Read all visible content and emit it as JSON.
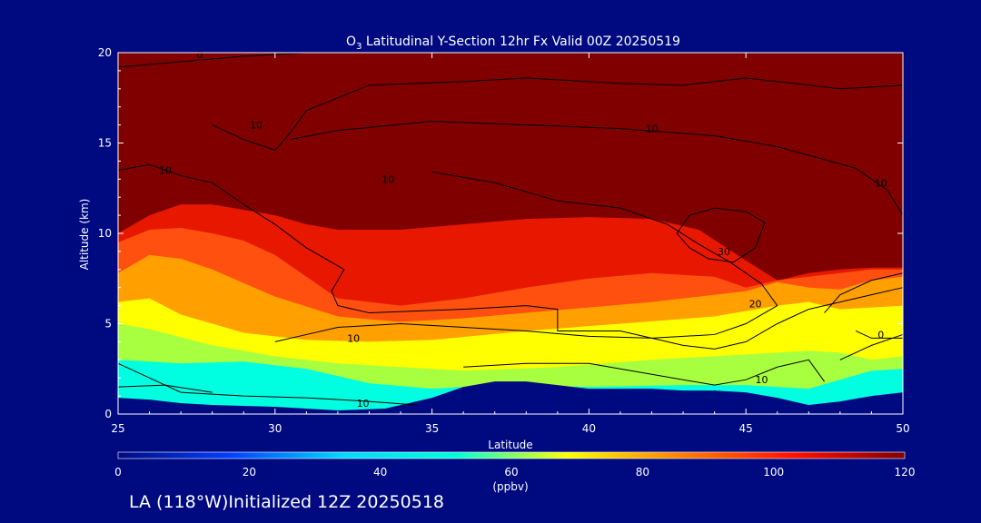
{
  "chart_data": {
    "type": "heatmap",
    "title_prefix": "O",
    "title_subscript": "3",
    "title_rest": " Latitudinal Y-Section 12hr  Fx Valid 00Z 20250519",
    "xlabel": "Latitude",
    "ylabel": "Altitude (km)",
    "xlim": [
      25,
      50
    ],
    "ylim": [
      0,
      20
    ],
    "x_ticks": [
      "25",
      "30",
      "35",
      "40",
      "45",
      "50"
    ],
    "y_ticks": [
      "0",
      "5",
      "10",
      "15",
      "20"
    ],
    "grid": false,
    "colorbar": {
      "label": "(ppbv)",
      "range": [
        0,
        120
      ],
      "ticks": [
        "0",
        "20",
        "40",
        "60",
        "80",
        "100",
        "120"
      ],
      "colors": [
        "#000a80",
        "#0040ff",
        "#00d8ff",
        "#00ffd8",
        "#ffff00",
        "#ff8000",
        "#ff1000",
        "#800000"
      ]
    },
    "fill_colors": {
      "terrain": "#000a80",
      "ozone_120": "#800000",
      "ozone_100": "#e81800",
      "ozone_90": "#ff5010",
      "ozone_80": "#ffa000",
      "ozone_70": "#ffff00",
      "ozone_60": "#a8ff40",
      "ozone_50": "#00ffe0",
      "ozone_40": "#40c0ff",
      "ozone_low": "#1060ff"
    },
    "layers": [
      {
        "name": "ozone_50",
        "top": [
          [
            25,
            3.0
          ],
          [
            27,
            2.8
          ],
          [
            29,
            2.9
          ],
          [
            31,
            2.5
          ],
          [
            33,
            1.7
          ],
          [
            35,
            1.4
          ],
          [
            37,
            1.6
          ],
          [
            40,
            1.5
          ],
          [
            43,
            1.6
          ],
          [
            45,
            1.6
          ],
          [
            47,
            1.4
          ],
          [
            49,
            2.4
          ],
          [
            50,
            2.5
          ]
        ]
      },
      {
        "name": "ozone_60",
        "top": [
          [
            25,
            5.0
          ],
          [
            26,
            4.7
          ],
          [
            28,
            3.8
          ],
          [
            30,
            3.2
          ],
          [
            32,
            2.8
          ],
          [
            34,
            2.6
          ],
          [
            36,
            2.4
          ],
          [
            39,
            2.6
          ],
          [
            42,
            3.0
          ],
          [
            45,
            3.3
          ],
          [
            47,
            3.5
          ],
          [
            48,
            3.4
          ],
          [
            49,
            3.0
          ],
          [
            50,
            3.2
          ]
        ]
      },
      {
        "name": "ozone_70",
        "top": [
          [
            25,
            6.2
          ],
          [
            26,
            6.4
          ],
          [
            27,
            5.5
          ],
          [
            29,
            4.5
          ],
          [
            31,
            4.1
          ],
          [
            33,
            4.0
          ],
          [
            35,
            4.1
          ],
          [
            38,
            4.6
          ],
          [
            41,
            5.0
          ],
          [
            44,
            5.4
          ],
          [
            46,
            6.0
          ],
          [
            47,
            6.2
          ],
          [
            48,
            5.8
          ],
          [
            49,
            5.9
          ],
          [
            50,
            6.0
          ]
        ]
      },
      {
        "name": "ozone_80",
        "top": [
          [
            25,
            7.8
          ],
          [
            26,
            8.8
          ],
          [
            27,
            8.6
          ],
          [
            28,
            8.0
          ],
          [
            30,
            6.5
          ],
          [
            32,
            5.4
          ],
          [
            34,
            5.1
          ],
          [
            36,
            5.3
          ],
          [
            38,
            5.6
          ],
          [
            40,
            5.9
          ],
          [
            42,
            6.2
          ],
          [
            44,
            6.6
          ],
          [
            45,
            6.8
          ],
          [
            46,
            7.3
          ],
          [
            47,
            7.0
          ],
          [
            48,
            6.9
          ],
          [
            49,
            7.4
          ],
          [
            50,
            7.6
          ]
        ]
      },
      {
        "name": "ozone_90",
        "top": [
          [
            25,
            9.5
          ],
          [
            26,
            10.2
          ],
          [
            27,
            10.3
          ],
          [
            28,
            10.0
          ],
          [
            29,
            9.6
          ],
          [
            30,
            8.8
          ],
          [
            31,
            7.6
          ],
          [
            32,
            6.4
          ],
          [
            34,
            6.0
          ],
          [
            36,
            6.4
          ],
          [
            38,
            7.0
          ],
          [
            40,
            7.5
          ],
          [
            42,
            7.8
          ],
          [
            44,
            7.6
          ],
          [
            45,
            7.0
          ],
          [
            46,
            7.4
          ],
          [
            47,
            7.6
          ],
          [
            48,
            7.8
          ],
          [
            49,
            8.0
          ],
          [
            50,
            8.0
          ]
        ]
      },
      {
        "name": "ozone_100",
        "top": [
          [
            25,
            10.0
          ],
          [
            26,
            11.0
          ],
          [
            27,
            11.6
          ],
          [
            28,
            11.6
          ],
          [
            29,
            11.3
          ],
          [
            30,
            11.0
          ],
          [
            31,
            10.5
          ],
          [
            32,
            10.2
          ],
          [
            34,
            10.2
          ],
          [
            36,
            10.5
          ],
          [
            38,
            10.8
          ],
          [
            40,
            10.9
          ],
          [
            42,
            10.8
          ],
          [
            43.5,
            10.2
          ],
          [
            45,
            8.5
          ],
          [
            46,
            7.4
          ],
          [
            47,
            7.8
          ],
          [
            48,
            8.0
          ],
          [
            49,
            8.1
          ],
          [
            50,
            8.1
          ]
        ]
      },
      {
        "name": "ozone_120",
        "top": [
          [
            25,
            20
          ],
          [
            50,
            20
          ]
        ]
      }
    ],
    "terrain": [
      [
        25,
        0.9
      ],
      [
        26,
        0.8
      ],
      [
        27,
        0.6
      ],
      [
        28,
        0.5
      ],
      [
        30,
        0.4
      ],
      [
        32,
        0.2
      ],
      [
        33.5,
        0.3
      ],
      [
        35,
        0.9
      ],
      [
        36,
        1.5
      ],
      [
        37,
        1.8
      ],
      [
        38,
        1.8
      ],
      [
        39,
        1.6
      ],
      [
        40,
        1.4
      ],
      [
        42,
        1.4
      ],
      [
        43,
        1.3
      ],
      [
        44,
        1.3
      ],
      [
        45,
        1.2
      ],
      [
        46,
        0.9
      ],
      [
        47,
        0.5
      ],
      [
        48,
        0.7
      ],
      [
        49,
        1.0
      ],
      [
        50,
        1.2
      ]
    ],
    "contours": [
      {
        "label": "0",
        "points": [
          [
            25,
            19.2
          ],
          [
            27,
            19.5
          ],
          [
            29,
            19.8
          ],
          [
            31,
            20.0
          ]
        ]
      },
      {
        "label": "10",
        "points": [
          [
            28,
            16.0
          ],
          [
            29,
            15.2
          ],
          [
            30,
            14.6
          ],
          [
            30.5,
            15.6
          ],
          [
            31,
            16.8
          ],
          [
            33,
            18.2
          ],
          [
            36,
            18.4
          ],
          [
            38,
            18.6
          ],
          [
            41,
            18.3
          ],
          [
            43,
            18.2
          ],
          [
            45,
            18.6
          ],
          [
            48,
            18.0
          ],
          [
            50,
            18.2
          ]
        ]
      },
      {
        "label": "10",
        "points": [
          [
            30.5,
            15.2
          ],
          [
            32,
            15.7
          ],
          [
            35,
            16.2
          ],
          [
            38,
            16.0
          ],
          [
            41,
            15.8
          ],
          [
            44,
            15.4
          ],
          [
            46,
            14.8
          ],
          [
            48.5,
            13.6
          ],
          [
            49.5,
            12.4
          ],
          [
            50,
            11.0
          ]
        ]
      },
      {
        "label": "10",
        "points": [
          [
            25,
            13.5
          ],
          [
            26,
            13.8
          ],
          [
            27,
            13.2
          ],
          [
            28,
            12.8
          ],
          [
            29,
            11.6
          ],
          [
            30,
            10.5
          ],
          [
            31,
            9.2
          ],
          [
            32.2,
            8.0
          ],
          [
            31.8,
            6.8
          ],
          [
            32,
            6.0
          ],
          [
            33,
            5.6
          ],
          [
            36,
            5.8
          ],
          [
            38,
            6.0
          ],
          [
            39,
            5.8
          ],
          [
            39,
            4.6
          ],
          [
            41,
            4.6
          ],
          [
            42,
            4.2
          ],
          [
            43,
            3.8
          ],
          [
            44,
            3.6
          ],
          [
            45,
            4.0
          ],
          [
            46,
            5.0
          ],
          [
            47,
            5.8
          ],
          [
            48,
            6.2
          ],
          [
            49,
            6.6
          ],
          [
            50,
            7.0
          ]
        ]
      },
      {
        "label": "20",
        "points": [
          [
            35,
            13.4
          ],
          [
            37,
            12.8
          ],
          [
            39,
            11.8
          ],
          [
            41,
            11.4
          ],
          [
            42.5,
            10.5
          ],
          [
            43.5,
            9.4
          ],
          [
            44.5,
            8.4
          ],
          [
            45.5,
            7.2
          ],
          [
            46,
            6.0
          ],
          [
            45,
            5.0
          ],
          [
            44,
            4.4
          ],
          [
            42,
            4.2
          ],
          [
            40,
            4.3
          ],
          [
            38,
            4.6
          ],
          [
            36,
            4.8
          ],
          [
            34,
            5.0
          ],
          [
            32,
            4.8
          ],
          [
            31,
            4.4
          ],
          [
            30,
            4.0
          ]
        ]
      },
      {
        "label": "30",
        "points": [
          [
            43.2,
            11.0
          ],
          [
            44,
            11.4
          ],
          [
            45,
            11.2
          ],
          [
            45.6,
            10.6
          ],
          [
            45.3,
            9.2
          ],
          [
            44.6,
            8.4
          ],
          [
            43.8,
            8.6
          ],
          [
            43.2,
            9.2
          ],
          [
            42.8,
            10.0
          ],
          [
            43.2,
            11.0
          ]
        ]
      },
      {
        "label": "10",
        "points": [
          [
            25,
            2.8
          ],
          [
            26,
            2.0
          ],
          [
            27,
            1.2
          ],
          [
            29,
            1.0
          ],
          [
            31,
            0.9
          ],
          [
            33,
            0.7
          ],
          [
            34.5,
            0.5
          ]
        ]
      },
      {
        "label": "10",
        "points": [
          [
            25,
            1.5
          ],
          [
            26.5,
            1.6
          ],
          [
            28,
            1.2
          ]
        ]
      },
      {
        "label": "10",
        "points": [
          [
            36,
            2.6
          ],
          [
            38,
            2.8
          ],
          [
            40,
            2.8
          ],
          [
            42,
            2.2
          ],
          [
            44,
            1.6
          ],
          [
            45,
            1.9
          ],
          [
            46,
            2.6
          ],
          [
            47,
            3.0
          ],
          [
            47.5,
            1.8
          ]
        ]
      },
      {
        "label": "0",
        "points": [
          [
            48.5,
            4.6
          ],
          [
            49,
            4.2
          ],
          [
            50,
            4.2
          ]
        ]
      },
      {
        "label": "",
        "points": [
          [
            47.5,
            5.6
          ],
          [
            48,
            6.6
          ],
          [
            49,
            7.4
          ],
          [
            50,
            7.8
          ]
        ]
      },
      {
        "label": "",
        "points": [
          [
            48,
            3.0
          ],
          [
            49,
            3.8
          ],
          [
            50,
            4.4
          ]
        ]
      }
    ],
    "contour_labels": [
      {
        "text": "0",
        "x": 27.6,
        "y": 19.7
      },
      {
        "text": "10",
        "x": 29.4,
        "y": 15.8
      },
      {
        "text": "10",
        "x": 26.5,
        "y": 13.3
      },
      {
        "text": "10",
        "x": 33.6,
        "y": 12.8
      },
      {
        "text": "10",
        "x": 42.0,
        "y": 15.6
      },
      {
        "text": "10",
        "x": 49.3,
        "y": 12.6
      },
      {
        "text": "30",
        "x": 44.3,
        "y": 8.8
      },
      {
        "text": "20",
        "x": 45.3,
        "y": 5.9
      },
      {
        "text": "10",
        "x": 32.5,
        "y": 4.0
      },
      {
        "text": "10",
        "x": 32.8,
        "y": 0.4
      },
      {
        "text": "10",
        "x": 45.5,
        "y": 1.7
      },
      {
        "text": "0",
        "x": 49.3,
        "y": 4.2
      }
    ]
  },
  "footer_text": "LA (118°W)Initialized 12Z 20250518"
}
